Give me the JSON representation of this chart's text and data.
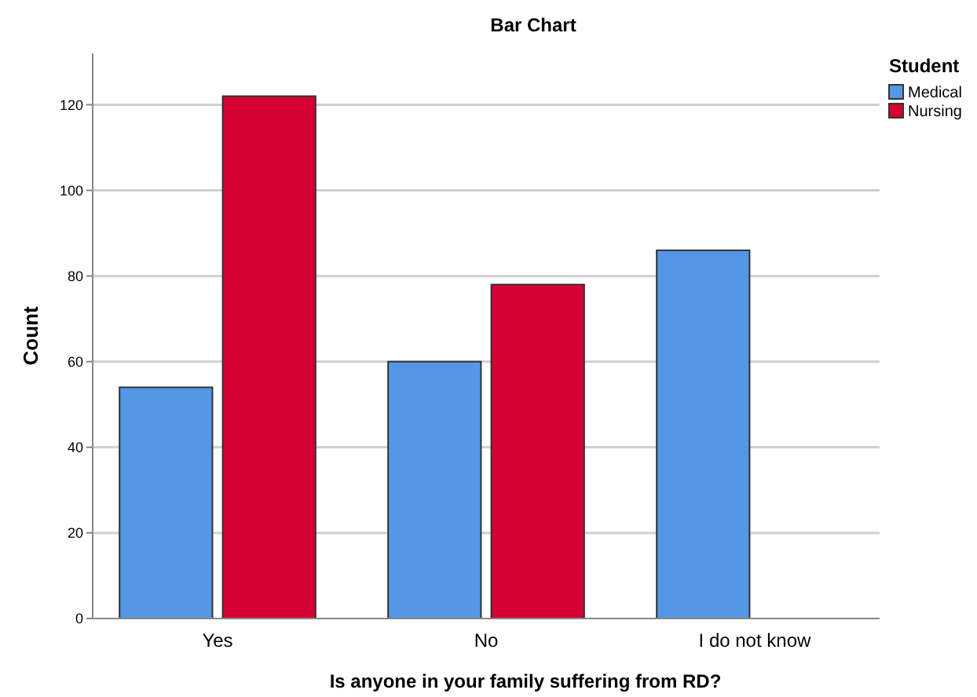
{
  "chart_data": {
    "type": "bar",
    "title": "Bar Chart",
    "xlabel": "Is anyone in your family suffering from RD?",
    "ylabel": "Count",
    "legend_title": "Student",
    "categories": [
      "Yes",
      "No",
      "I do not know"
    ],
    "series": [
      {
        "name": "Medical",
        "color": "#5596e6",
        "values": [
          54,
          60,
          86
        ]
      },
      {
        "name": "Nursing",
        "color": "#d60032",
        "values": [
          122,
          78,
          null
        ]
      }
    ],
    "ylim": [
      0,
      132
    ],
    "yticks": [
      0,
      20,
      40,
      60,
      80,
      100,
      120
    ],
    "grid": "y",
    "legend": "top right"
  }
}
